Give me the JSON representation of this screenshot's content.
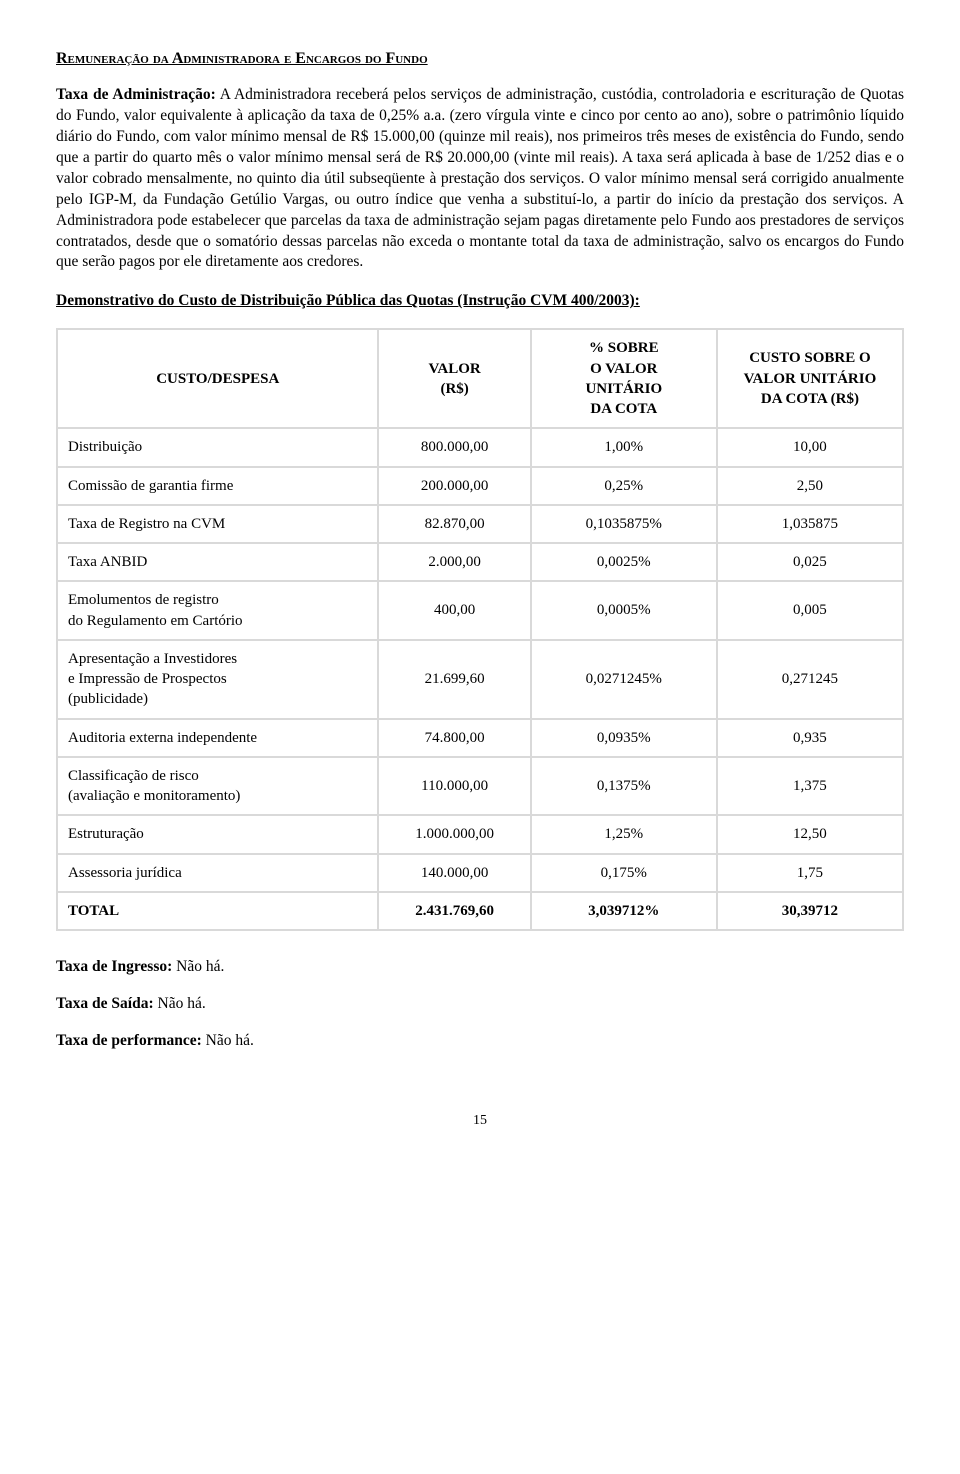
{
  "section_title": "Remuneração da Administradora e Encargos do Fundo",
  "body_paragraph": "Taxa de Administração: A Administradora receberá pelos serviços de administração, custódia, controladoria e escrituração de Quotas do Fundo, valor equivalente à aplicação da taxa de 0,25% a.a. (zero vírgula vinte e cinco por cento ao ano), sobre o patrimônio líquido diário do Fundo, com valor mínimo mensal de R$ 15.000,00 (quinze mil reais), nos primeiros três meses de existência do Fundo, sendo que a partir do quarto mês o valor mínimo mensal será de R$ 20.000,00 (vinte mil reais). A taxa será aplicada à base de 1/252 dias e o valor cobrado mensalmente, no quinto dia útil subseqüente à prestação dos serviços. O valor mínimo mensal será corrigido anualmente pelo IGP-M, da Fundação Getúlio Vargas, ou outro índice que venha a substituí-lo, a partir do início da prestação dos serviços. A Administradora pode estabelecer que parcelas da taxa de administração sejam pagas diretamente pelo Fundo aos prestadores de serviços contratados, desde que o somatório dessas parcelas não exceda o montante total da taxa de administração, salvo os encargos do Fundo que serão pagos por ele diretamente aos credores.",
  "body_lead_bold": "Taxa de Administração:",
  "demo_title": "Demonstrativo do Custo de Distribuição Pública das Quotas (Instrução CVM 400/2003):",
  "table": {
    "headers": {
      "c1": "CUSTO/DESPESA",
      "c2": "VALOR\n(R$)",
      "c3": "% SOBRE\nO VALOR\nUNITÁRIO\nDA COTA",
      "c4": "CUSTO SOBRE O\nVALOR UNITÁRIO\nDA COTA (R$)"
    },
    "rows": [
      {
        "label": "Distribuição",
        "value": "800.000,00",
        "pct": "1,00%",
        "unit": "10,00"
      },
      {
        "label": "Comissão de garantia firme",
        "value": "200.000,00",
        "pct": "0,25%",
        "unit": "2,50"
      },
      {
        "label": "Taxa de Registro na CVM",
        "value": "82.870,00",
        "pct": "0,1035875%",
        "unit": "1,035875"
      },
      {
        "label": "Taxa ANBID",
        "value": "2.000,00",
        "pct": "0,0025%",
        "unit": "0,025"
      },
      {
        "label": "Emolumentos de registro\ndo Regulamento em Cartório",
        "value": "400,00",
        "pct": "0,0005%",
        "unit": "0,005"
      },
      {
        "label": "Apresentação a Investidores\ne Impressão de Prospectos\n(publicidade)",
        "value": "21.699,60",
        "pct": "0,0271245%",
        "unit": "0,271245"
      },
      {
        "label": "Auditoria externa independente",
        "value": "74.800,00",
        "pct": "0,0935%",
        "unit": "0,935"
      },
      {
        "label": "Classificação de risco\n(avaliação e monitoramento)",
        "value": "110.000,00",
        "pct": "0,1375%",
        "unit": "1,375"
      },
      {
        "label": "Estruturação",
        "value": "1.000.000,00",
        "pct": "1,25%",
        "unit": "12,50"
      },
      {
        "label": "Assessoria jurídica",
        "value": "140.000,00",
        "pct": "0,175%",
        "unit": "1,75"
      }
    ],
    "total": {
      "label": "TOTAL",
      "value": "2.431.769,60",
      "pct": "3,039712%",
      "unit": "30,39712"
    }
  },
  "footer": {
    "l1b": "Taxa de Ingresso:",
    "l1": " Não há.",
    "l2b": "Taxa de Saída:",
    "l2": " Não há.",
    "l3b": "Taxa de performance:",
    "l3": " Não há."
  },
  "page_number": "15"
}
